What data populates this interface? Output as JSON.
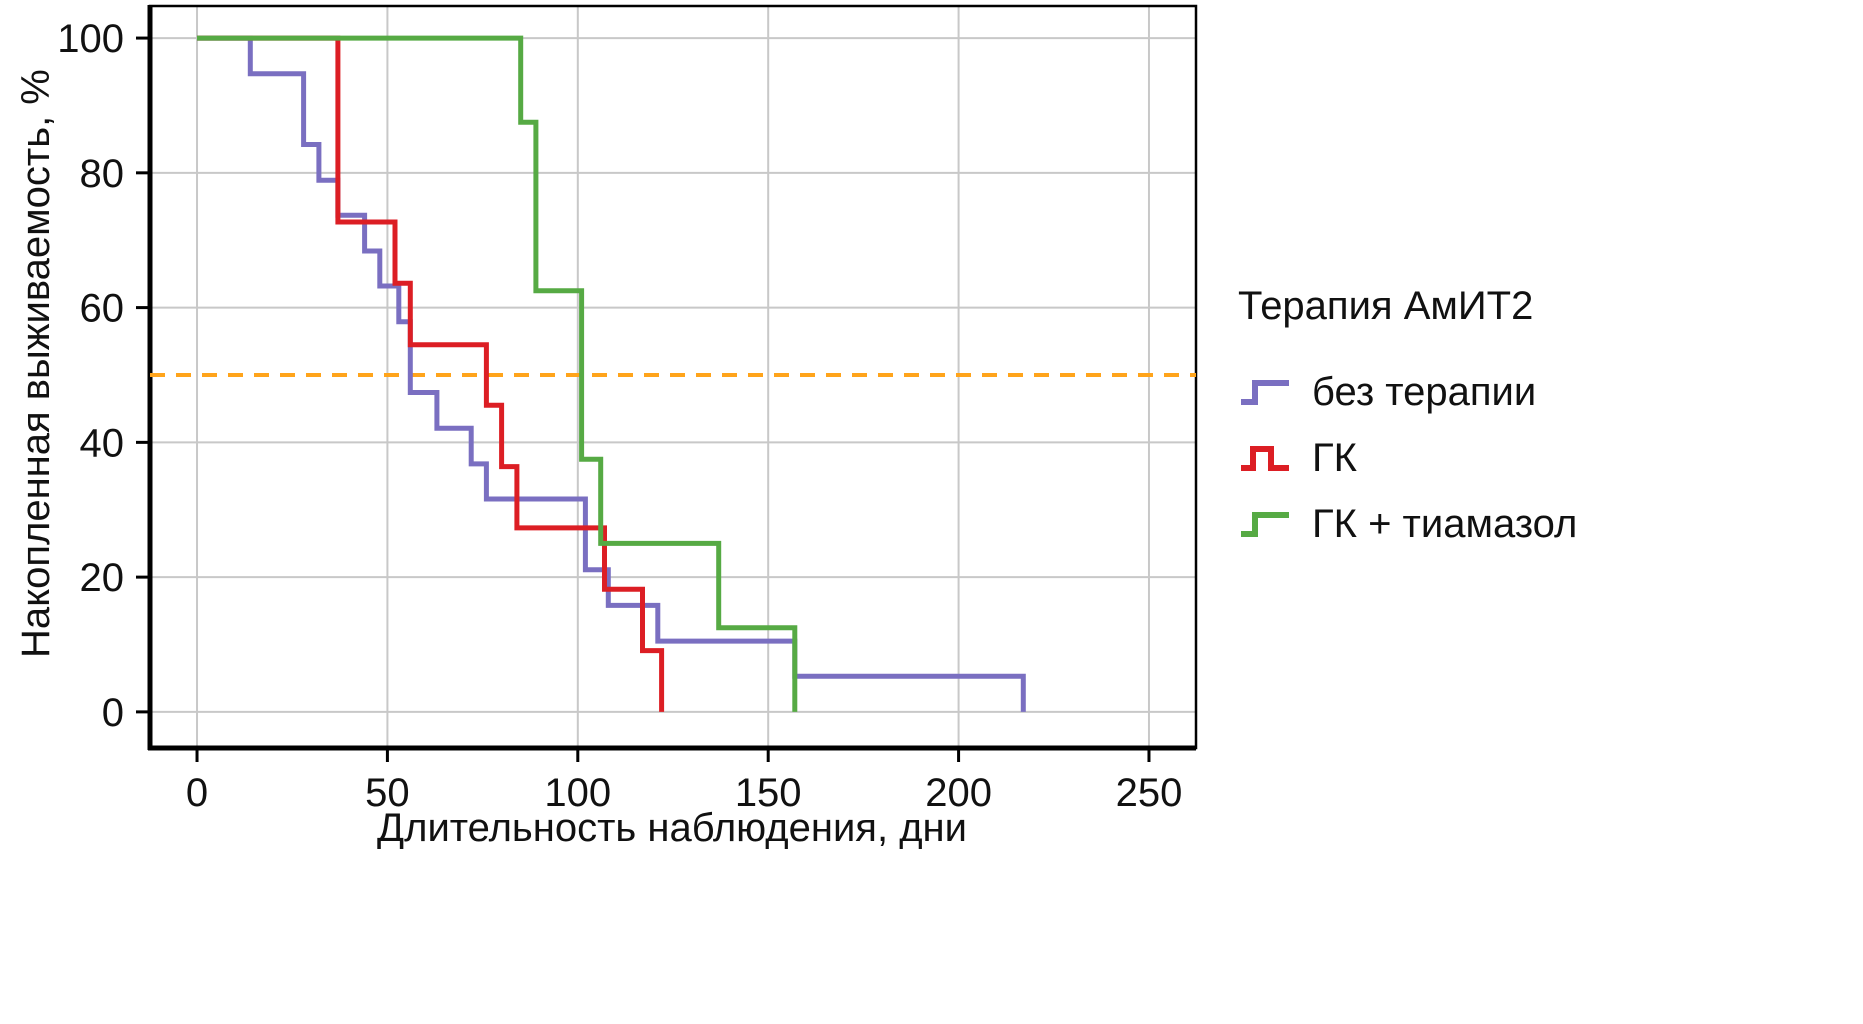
{
  "figure": {
    "background": "#ffffff"
  },
  "chart_data": {
    "type": "line",
    "variant": "kaplan-meier-step",
    "title": "",
    "xlabel": "Длительность наблюдения, дни",
    "ylabel": "Накопленная выживаемость, %",
    "xticks": [
      0,
      50,
      100,
      150,
      200,
      250
    ],
    "yticks": [
      0,
      20,
      40,
      60,
      80,
      100
    ],
    "xlim": [
      -12.35,
      262.35
    ],
    "ylim": [
      -5.36,
      104.76
    ],
    "grid": true,
    "colors": {
      "grid": "#c8c8c8",
      "axis": "#000000",
      "text": "#111111"
    },
    "reference_line": {
      "y": 50,
      "color": "#FFA41B",
      "style": "dashed"
    },
    "legend": {
      "title": "Терапия АмИТ2",
      "position": "right"
    },
    "series": [
      {
        "name": "без терапии",
        "key": "no-therapy",
        "color": "#7A6FC1",
        "points": [
          [
            0,
            100
          ],
          [
            14,
            100
          ],
          [
            14,
            94.7
          ],
          [
            28,
            94.7
          ],
          [
            28,
            84.2
          ],
          [
            32,
            84.2
          ],
          [
            32,
            78.9
          ],
          [
            37,
            78.9
          ],
          [
            37,
            73.7
          ],
          [
            44,
            73.7
          ],
          [
            44,
            68.4
          ],
          [
            48,
            68.4
          ],
          [
            48,
            63.2
          ],
          [
            53,
            63.2
          ],
          [
            53,
            57.9
          ],
          [
            56,
            57.9
          ],
          [
            56,
            47.4
          ],
          [
            63,
            47.4
          ],
          [
            63,
            42.1
          ],
          [
            72,
            42.1
          ],
          [
            72,
            36.8
          ],
          [
            76,
            36.8
          ],
          [
            76,
            31.6
          ],
          [
            102,
            31.6
          ],
          [
            102,
            21.1
          ],
          [
            108,
            21.1
          ],
          [
            108,
            15.8
          ],
          [
            121,
            15.8
          ],
          [
            121,
            10.5
          ],
          [
            157,
            10.5
          ],
          [
            157,
            5.3
          ],
          [
            217,
            5.3
          ],
          [
            217,
            0
          ]
        ]
      },
      {
        "name": "ГК",
        "key": "gk",
        "color": "#DC1E24",
        "points": [
          [
            0,
            100
          ],
          [
            37,
            100
          ],
          [
            37,
            72.7
          ],
          [
            52,
            72.7
          ],
          [
            52,
            63.6
          ],
          [
            56,
            63.6
          ],
          [
            56,
            54.5
          ],
          [
            76,
            54.5
          ],
          [
            76,
            45.5
          ],
          [
            80,
            45.5
          ],
          [
            80,
            36.4
          ],
          [
            84,
            36.4
          ],
          [
            84,
            27.3
          ],
          [
            107,
            27.3
          ],
          [
            107,
            18.2
          ],
          [
            117,
            18.2
          ],
          [
            117,
            9.1
          ],
          [
            122,
            9.1
          ],
          [
            122,
            0
          ]
        ]
      },
      {
        "name": "ГК + тиамазол",
        "key": "gk-thiamazole",
        "color": "#56AA44",
        "points": [
          [
            0,
            100
          ],
          [
            85,
            100
          ],
          [
            85,
            87.5
          ],
          [
            89,
            87.5
          ],
          [
            89,
            62.5
          ],
          [
            101,
            62.5
          ],
          [
            101,
            37.5
          ],
          [
            106,
            37.5
          ],
          [
            106,
            25
          ],
          [
            137,
            25
          ],
          [
            137,
            12.5
          ],
          [
            157,
            12.5
          ],
          [
            157,
            0
          ]
        ]
      }
    ]
  }
}
